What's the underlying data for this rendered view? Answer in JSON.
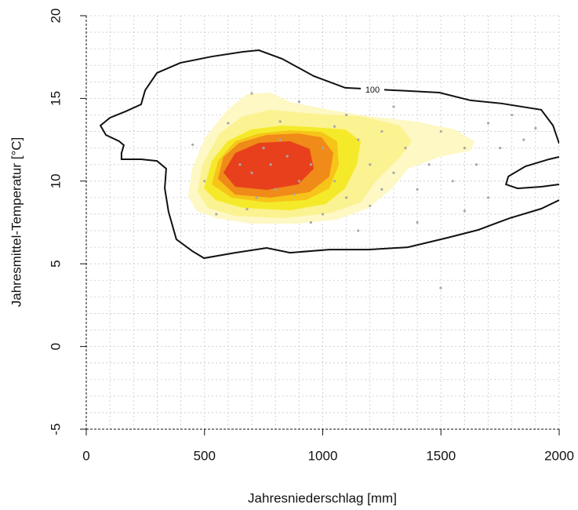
{
  "chart_data": {
    "type": "contour",
    "xlabel": "Jahresniederschlag [mm]",
    "ylabel": "Jahresmittel-Temperatur [°C]",
    "xlim": [
      0,
      2000
    ],
    "ylim": [
      -5,
      20
    ],
    "xticks": [
      0,
      500,
      1000,
      1500,
      2000
    ],
    "yticks": [
      -5,
      0,
      5,
      10,
      15,
      20
    ],
    "xgrid": [
      0,
      100,
      200,
      300,
      400,
      500,
      600,
      700,
      800,
      900,
      1000,
      1100,
      1200,
      1300,
      1400,
      1500,
      1600,
      1700,
      1800,
      1900,
      2000
    ],
    "ygrid": [
      -5,
      -4,
      -3,
      -2,
      -1,
      0,
      1,
      2,
      3,
      4,
      5,
      6,
      7,
      8,
      9,
      10,
      11,
      12,
      13,
      14,
      15,
      16,
      17,
      18,
      19,
      20
    ],
    "contour_fills": [
      {
        "color": "#fdf8c4",
        "x": [
          431,
          448,
          504,
          597,
          680,
          779,
          862,
          1028,
          1194,
          1393,
          1559,
          1642,
          1625,
          1493,
          1360,
          1294,
          1194,
          1061,
          896,
          697,
          547,
          464
        ],
        "y": [
          9.09,
          10.75,
          12.65,
          14.31,
          15.26,
          15.35,
          14.78,
          14.31,
          13.93,
          13.6,
          13.12,
          12.41,
          11.84,
          11.46,
          10.75,
          9.56,
          8.38,
          7.67,
          7.43,
          7.43,
          7.76,
          8.23
        ]
      },
      {
        "color": "#fbf291",
        "x": [
          471,
          491,
          564,
          663,
          779,
          962,
          1161,
          1327,
          1377,
          1327,
          1227,
          1161,
          1028,
          829,
          630,
          514
        ],
        "y": [
          9.33,
          10.99,
          12.88,
          13.93,
          14.31,
          14.07,
          13.93,
          13.36,
          12.41,
          11.46,
          10.04,
          8.71,
          8.05,
          7.76,
          7.9,
          8.38
        ]
      },
      {
        "color": "#f5ea2a",
        "x": [
          498,
          531,
          597,
          697,
          829,
          962,
          1095,
          1161,
          1144,
          1095,
          1012,
          862,
          663,
          547
        ],
        "y": [
          9.56,
          11.22,
          12.41,
          13.12,
          13.36,
          13.26,
          13.12,
          12.41,
          10.99,
          9.56,
          8.61,
          8.23,
          8.38,
          8.85
        ]
      },
      {
        "color": "#f7c41a",
        "x": [
          531,
          557,
          630,
          730,
          862,
          995,
          1061,
          1068,
          1028,
          929,
          763,
          614
        ],
        "y": [
          9.8,
          11.22,
          12.41,
          12.88,
          13.07,
          12.98,
          12.41,
          10.99,
          9.56,
          8.85,
          8.71,
          9.0
        ]
      },
      {
        "color": "#f08a18",
        "x": [
          557,
          580,
          647,
          763,
          896,
          995,
          1045,
          1028,
          945,
          779,
          630
        ],
        "y": [
          10.13,
          11.46,
          12.31,
          12.79,
          12.88,
          12.65,
          11.7,
          10.27,
          9.33,
          9.0,
          9.18
        ]
      },
      {
        "color": "#e8401c",
        "x": [
          580,
          630,
          730,
          862,
          945,
          962,
          896,
          763,
          630
        ],
        "y": [
          10.51,
          11.7,
          12.31,
          12.41,
          11.94,
          10.75,
          9.8,
          9.47,
          9.66
        ]
      }
    ],
    "contour_lines": [
      {
        "level": 100,
        "color": "#111111",
        "x": [
          2000,
          1924,
          1791,
          1658,
          1526,
          1360,
          1194,
          1028,
          862,
          763,
          630,
          498,
          448,
          381,
          348,
          332,
          338,
          299,
          232,
          149,
          149,
          159,
          139,
          83,
          60,
          100,
          166,
          232,
          249,
          299,
          398,
          531,
          663,
          730,
          829,
          962,
          1095,
          1360,
          1493,
          1625,
          1758,
          1924,
          1974,
          2000,
          null,
          2000,
          1957,
          1857,
          1785,
          1775,
          1824,
          1924,
          2000
        ],
        "y": [
          8.85,
          8.33,
          7.76,
          7.05,
          6.57,
          6.0,
          5.86,
          5.86,
          5.67,
          5.96,
          5.67,
          5.34,
          5.77,
          6.48,
          8.14,
          9.56,
          10.75,
          11.22,
          11.32,
          11.32,
          11.7,
          12.17,
          12.41,
          12.79,
          13.36,
          13.83,
          14.21,
          14.64,
          15.49,
          16.54,
          17.15,
          17.53,
          17.82,
          17.91,
          17.39,
          16.35,
          15.64,
          15.45,
          15.35,
          14.88,
          14.69,
          14.31,
          13.36,
          12.27,
          null,
          11.46,
          11.32,
          10.89,
          10.28,
          9.8,
          9.56,
          9.66,
          9.8
        ]
      }
    ],
    "points": {
      "color": "#a8a8a8",
      "x": [
        650,
        700,
        750,
        800,
        850,
        900,
        720,
        780,
        820,
        880,
        950,
        1000,
        1050,
        1100,
        1150,
        1200,
        1250,
        1300,
        1350,
        1400,
        1450,
        1500,
        1550,
        1600,
        1650,
        1700,
        1750,
        1800,
        1850,
        1900,
        1300,
        1100,
        900,
        700,
        600,
        550,
        500,
        450,
        1000,
        1200,
        1400,
        1600,
        1700,
        1800,
        1150,
        950,
        680,
        820,
        1050,
        1250,
        1499
      ],
      "y": [
        11,
        10.5,
        12,
        9.5,
        11.5,
        10,
        9,
        11,
        12.5,
        9.2,
        11,
        12,
        10,
        9,
        12.5,
        11,
        13,
        10.5,
        12,
        9.5,
        11,
        13,
        10,
        12,
        11,
        13.5,
        12,
        14,
        12.5,
        13.2,
        14.5,
        14,
        14.8,
        15.3,
        13.5,
        8,
        10,
        12.2,
        8,
        8.5,
        7.5,
        8.2,
        9,
        7.8,
        7,
        7.5,
        8.3,
        13.6,
        13.3,
        9.5,
        3.54
      ]
    }
  }
}
